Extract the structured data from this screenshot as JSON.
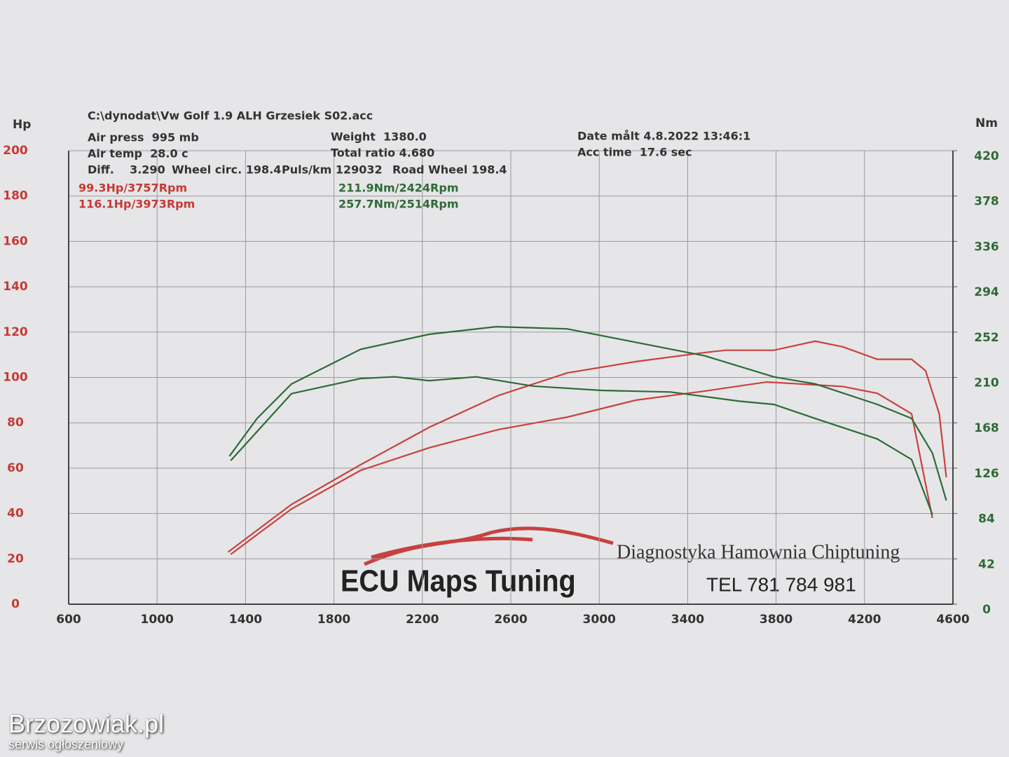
{
  "chart_data": {
    "type": "line",
    "y_label": "Hp",
    "y2_label": "Nm",
    "xlim": [
      600,
      4600
    ],
    "xticks": [
      600,
      1000,
      1400,
      1800,
      2200,
      2600,
      3000,
      3400,
      3800,
      4200,
      4600
    ],
    "ylim": [
      0,
      200
    ],
    "yticks": [
      0,
      20,
      40,
      60,
      80,
      100,
      120,
      140,
      160,
      180,
      200
    ],
    "y2lim": [
      0,
      420
    ],
    "y2ticks": [
      0,
      42,
      84,
      126,
      168,
      210,
      252,
      294,
      336,
      378,
      420
    ],
    "grid": true,
    "annotations": [
      "C:\\dynodat\\Vw Golf 1.9 ALH Grzesiek S02.acc",
      "Air press  995 mb",
      "Air temp  28.0 c",
      "Diff.    3.290",
      "Wheel circ. 198.4",
      "Puls/km 129032",
      "Road Wheel 198.4",
      "Weight  1380.0",
      "Total ratio 4.680",
      "Date målt 4.8.2022 13:46:1",
      "Acc time  17.6 sec",
      "99.3Hp/3757Rpm",
      "116.1Hp/3973Rpm",
      "211.9Nm/2424Rpm",
      "257.7Nm/2514Rpm"
    ],
    "series": [
      {
        "color": "#c9413f",
        "x": [
          1321,
          1608,
          1920,
          2231,
          2543,
          2855,
          3166,
          3478,
          3572,
          3790,
          3977,
          4102,
          4258,
          4413,
          4476,
          4538,
          4570
        ],
        "values": [
          23,
          44,
          61.5,
          78,
          92,
          102,
          107,
          111,
          112,
          112,
          116,
          113.5,
          108,
          108,
          103,
          84,
          56
        ]
      },
      {
        "color": "#c9413f",
        "x": [
          1333,
          1608,
          1920,
          2231,
          2543,
          2855,
          3166,
          3478,
          3758,
          4102,
          4258,
          4413,
          4507
        ],
        "values": [
          22,
          42,
          59,
          69,
          77,
          82.5,
          90,
          94,
          98,
          96,
          93,
          84,
          38
        ]
      },
      {
        "color": "#2f6a36",
        "axis": "y2",
        "x": [
          1327,
          1452,
          1608,
          1920,
          2231,
          2533,
          2855,
          3166,
          3478,
          3790,
          3977,
          4258,
          4413,
          4507,
          4570
        ],
        "values": [
          137,
          172,
          204,
          236,
          250,
          257,
          255,
          242.5,
          230,
          210.5,
          204,
          185,
          172,
          140,
          96
        ]
      },
      {
        "color": "#2f6a36",
        "axis": "y2",
        "x": [
          1333,
          1608,
          1920,
          2075,
          2231,
          2443,
          2699,
          3011,
          3323,
          3634,
          3790,
          3977,
          4258,
          4413,
          4507
        ],
        "values": [
          133,
          195,
          209,
          210.6,
          207,
          210.6,
          202,
          198,
          196.5,
          188,
          185,
          172,
          153,
          134,
          83
        ]
      }
    ]
  },
  "logo": {
    "brand": "ECU Maps Tuning",
    "tagline": "Diagnostyka Hamownia Chiptuning",
    "phone": "TEL 781 784 981"
  },
  "watermark": {
    "site": "Brzozowiak.pl",
    "subtitle": "serwis ogłoszeniowy"
  }
}
